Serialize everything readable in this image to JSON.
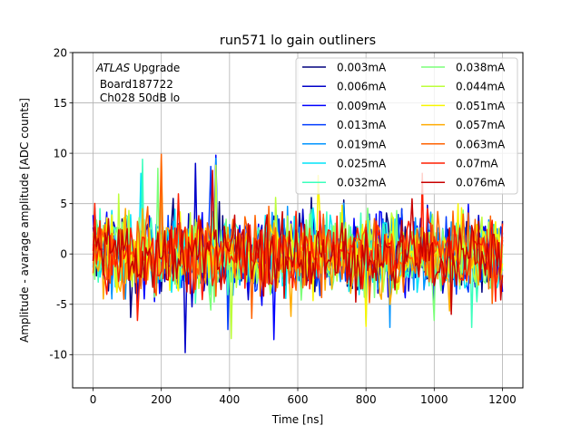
{
  "chart_data": {
    "type": "line",
    "title": "run571 lo gain outliners",
    "xlabel": "Time [ns]",
    "ylabel": "Amplitude - avarage amplitude [ADC counts]",
    "xlim": [
      -60,
      1260
    ],
    "ylim": [
      -13.3,
      20
    ],
    "x_ticks": [
      0,
      200,
      400,
      600,
      800,
      1000,
      1200
    ],
    "y_ticks": [
      -10,
      -5,
      0,
      5,
      10,
      15,
      20
    ],
    "grid": true,
    "legend": {
      "placement": "top-right",
      "columns": 2
    },
    "annotation": {
      "italic": "ATLAS",
      "upright": " Upgrade",
      "line2": " Board187722",
      "line3": " Ch028 50dB lo"
    },
    "x_range": [
      0,
      1200
    ],
    "sample_step_ns": 5,
    "series": [
      {
        "name": "0.003mA",
        "color": "#00007f",
        "peak_pos": [
          640,
          5.6
        ],
        "peak_neg": [
          110,
          -6.3
        ]
      },
      {
        "name": "0.006mA",
        "color": "#0000c8",
        "peak_pos": [
          300,
          9.0
        ],
        "peak_neg": [
          270,
          -9.8
        ]
      },
      {
        "name": "0.009mA",
        "color": "#0000ff",
        "peak_pos": [
          360,
          9.8
        ],
        "peak_neg": [
          530,
          -8.5
        ]
      },
      {
        "name": "0.013mA",
        "color": "#003cff",
        "peak_pos": [
          345,
          8.7
        ],
        "peak_neg": [
          395,
          -7.5
        ]
      },
      {
        "name": "0.019mA",
        "color": "#0094ff",
        "peak_pos": [
          360,
          9.5
        ],
        "peak_neg": [
          870,
          -7.3
        ]
      },
      {
        "name": "0.025mA",
        "color": "#00e4f8",
        "peak_pos": [
          140,
          8.0
        ],
        "peak_neg": [
          800,
          -7.0
        ]
      },
      {
        "name": "0.032mA",
        "color": "#3affbc",
        "peak_pos": [
          145,
          9.4
        ],
        "peak_neg": [
          1110,
          -7.3
        ]
      },
      {
        "name": "0.038mA",
        "color": "#7cff7a",
        "peak_pos": [
          190,
          8.5
        ],
        "peak_neg": [
          1000,
          -6.6
        ]
      },
      {
        "name": "0.044mA",
        "color": "#bcff3a",
        "peak_pos": [
          360,
          8.8
        ],
        "peak_neg": [
          405,
          -8.4
        ]
      },
      {
        "name": "0.051mA",
        "color": "#f8f500",
        "peak_pos": [
          660,
          7.8
        ],
        "peak_neg": [
          800,
          -7.2
        ]
      },
      {
        "name": "0.057mA",
        "color": "#ffab00",
        "peak_pos": [
          200,
          9.6
        ],
        "peak_neg": [
          580,
          -6.2
        ]
      },
      {
        "name": "0.063mA",
        "color": "#ff6200",
        "peak_pos": [
          200,
          9.9
        ],
        "peak_neg": [
          465,
          -6.4
        ]
      },
      {
        "name": "0.07mA",
        "color": "#ff1e00",
        "peak_pos": [
          965,
          8.0
        ],
        "peak_neg": [
          130,
          -6.6
        ]
      },
      {
        "name": "0.076mA",
        "color": "#c80000",
        "peak_pos": [
          350,
          8.3
        ],
        "peak_neg": [
          1050,
          -6.0
        ]
      }
    ]
  }
}
